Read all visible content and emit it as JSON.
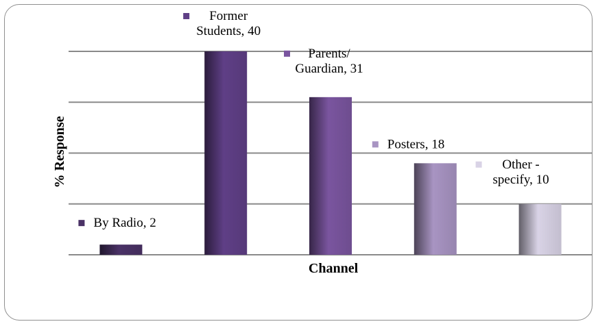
{
  "chart_data": {
    "type": "bar",
    "title": "",
    "xlabel": "Channel",
    "ylabel": "% Response",
    "ylim": [
      0,
      40
    ],
    "grid": true,
    "categories": [
      "By Radio",
      "Former Students",
      "Parents/ Guardian",
      "Posters",
      "Other - specify"
    ],
    "values": [
      2,
      40,
      31,
      18,
      10
    ],
    "data_labels": [
      [
        "By Radio, 2"
      ],
      [
        "Former",
        "Students, 40"
      ],
      [
        "Parents/",
        "Guardian, 31"
      ],
      [
        "Posters, 18"
      ],
      [
        "Other -",
        "specify, 10"
      ]
    ],
    "colors": [
      "#4a3266",
      "#5f3f86",
      "#7a559f",
      "#a894c2",
      "#d9d3e6"
    ]
  }
}
